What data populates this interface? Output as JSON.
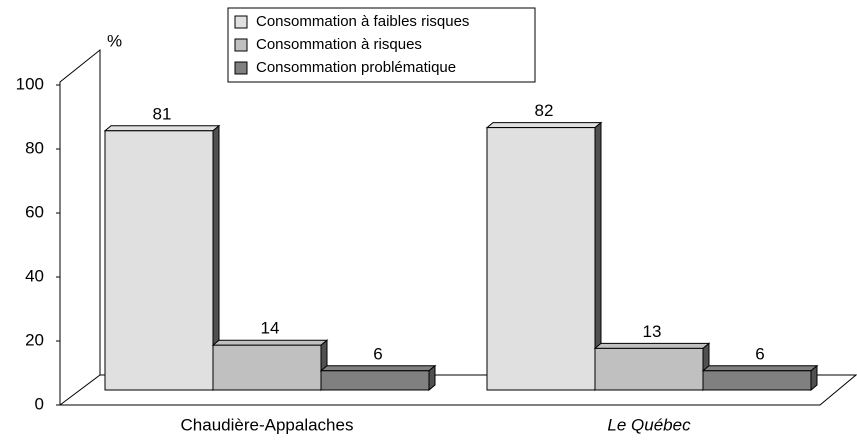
{
  "chart_data": {
    "type": "bar3d",
    "y_label": "%",
    "categories": [
      "Chaudière-Appalaches",
      "Le Québec"
    ],
    "series": [
      {
        "name": "Consommation à faibles risques",
        "color": "#e0e0e0",
        "values": [
          81,
          82
        ]
      },
      {
        "name": "Consommation à risques",
        "color": "#c0c0c0",
        "values": [
          14,
          13
        ]
      },
      {
        "name": "Consommation problématique",
        "color": "#808080",
        "values": [
          6,
          6
        ]
      }
    ],
    "ylim": [
      0,
      100
    ],
    "yticks": [
      0,
      20,
      40,
      60,
      80,
      100
    ],
    "legend": "top"
  }
}
